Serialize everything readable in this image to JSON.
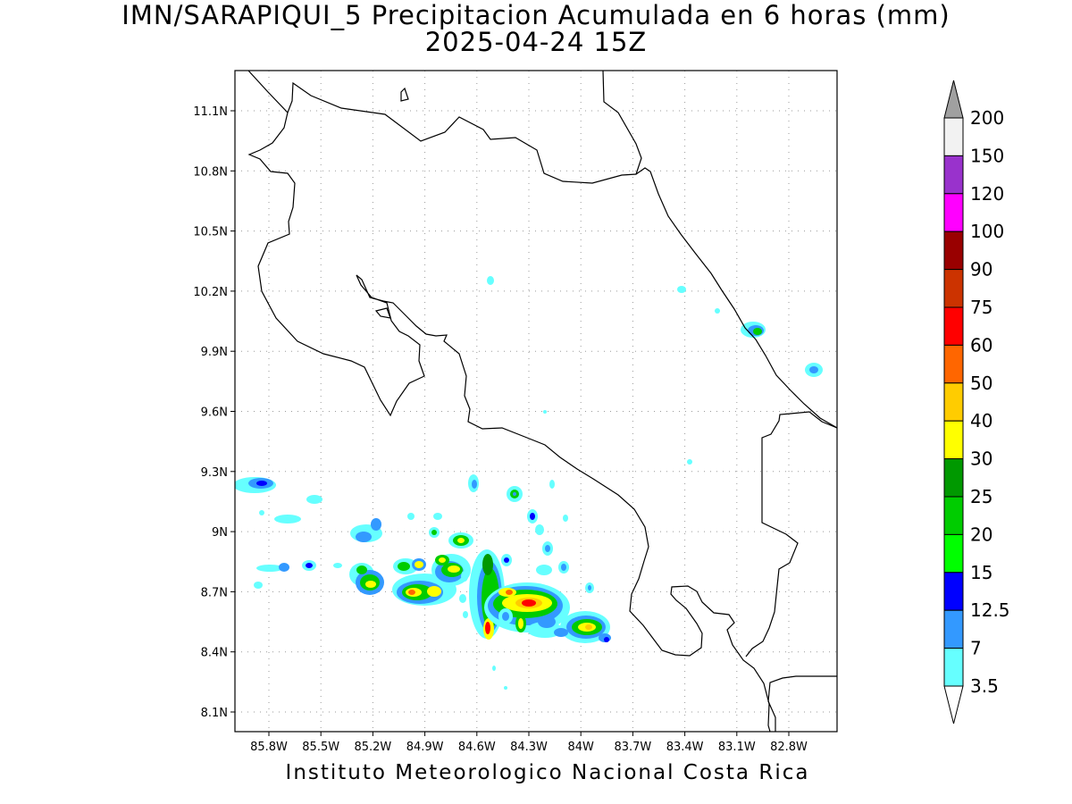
{
  "title": {
    "line1": "IMN/SARAPIQUI_5 Precipitacion Acumulada en 6 horas (mm)",
    "line2": "2025-04-24 15Z"
  },
  "credit": "Instituto Meteorologico Nacional Costa Rica",
  "map": {
    "lat_ticks": [
      "11.1N",
      "10.8N",
      "10.5N",
      "10.2N",
      "9.9N",
      "9.6N",
      "9.3N",
      "9N",
      "8.7N",
      "8.4N",
      "8.1N"
    ],
    "lon_ticks": [
      "85.8W",
      "85.5W",
      "85.2W",
      "84.9W",
      "84.6W",
      "84.3W",
      "84W",
      "83.7W",
      "83.4W",
      "83.1W",
      "82.8W"
    ],
    "grid": true
  },
  "colorbar": {
    "levels": [
      "200",
      "150",
      "120",
      "100",
      "90",
      "75",
      "60",
      "50",
      "40",
      "30",
      "25",
      "20",
      "15",
      "12.5",
      "7",
      "3.5"
    ],
    "colors_top_to_bottom": [
      "#f2f2f2",
      "#9932cc",
      "#ff00ff",
      "#990000",
      "#cc3300",
      "#ff0000",
      "#ff6600",
      "#ffcc00",
      "#ffff00",
      "#009900",
      "#00cc00",
      "#00ff00",
      "#0000ff",
      "#3399ff",
      "#66ffff"
    ],
    "over_color": "#a0a0a0",
    "under_color": "#ffffff"
  }
}
